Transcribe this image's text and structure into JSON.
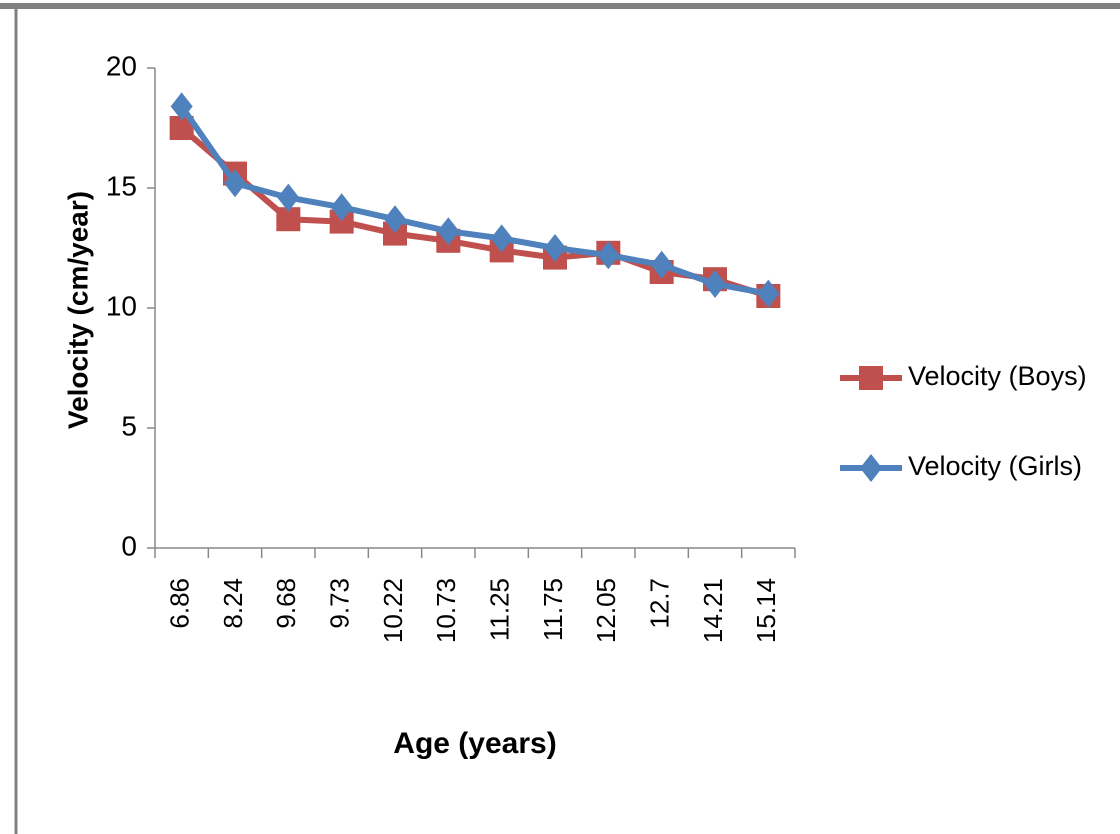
{
  "chart_data": {
    "type": "line",
    "x_label": "Age (years)",
    "y_label": "Velocity (cm/year)",
    "categories": [
      "6.86",
      "8.24",
      "9.68",
      "9.73",
      "10.22",
      "10.73",
      "11.25",
      "11.75",
      "12.05",
      "12.7",
      "14.21",
      "15.14"
    ],
    "series": [
      {
        "name": "Velocity (Boys)",
        "color": "#c0504d",
        "marker": "square",
        "values": [
          17.5,
          15.6,
          13.7,
          13.6,
          13.1,
          12.8,
          12.4,
          12.1,
          12.3,
          11.5,
          11.2,
          10.5
        ]
      },
      {
        "name": "Velocity (Girls)",
        "color": "#4f81bd",
        "marker": "diamond",
        "values": [
          18.4,
          15.2,
          14.6,
          14.2,
          13.7,
          13.2,
          12.9,
          12.5,
          12.2,
          11.8,
          11.0,
          10.6
        ]
      }
    ],
    "ylim": [
      0,
      20
    ],
    "yticks": [
      0,
      5,
      10,
      15,
      20
    ],
    "grid": false,
    "legend": "right"
  }
}
